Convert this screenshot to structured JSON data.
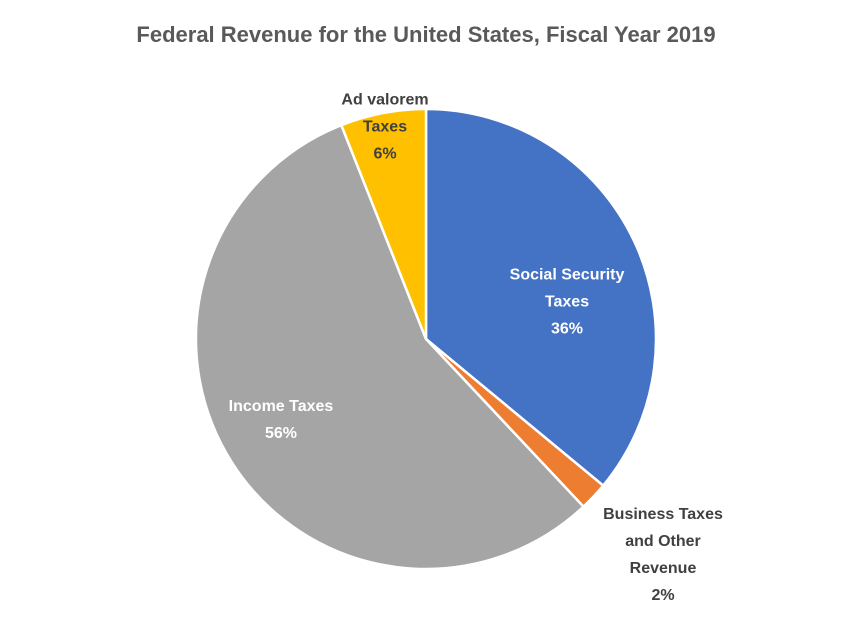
{
  "chart_data": {
    "type": "pie",
    "title": "Federal Revenue for the United States, Fiscal Year 2019",
    "categories": [
      "Social Security Taxes",
      "Business Taxes and Other Revenue",
      "Income Taxes",
      "Ad valorem Taxes"
    ],
    "values": [
      36,
      2,
      56,
      6
    ],
    "value_labels": [
      "36%",
      "2%",
      "56%",
      "6%"
    ],
    "colors": [
      "#4472c4",
      "#ed7d31",
      "#a5a5a5",
      "#ffc000"
    ]
  }
}
